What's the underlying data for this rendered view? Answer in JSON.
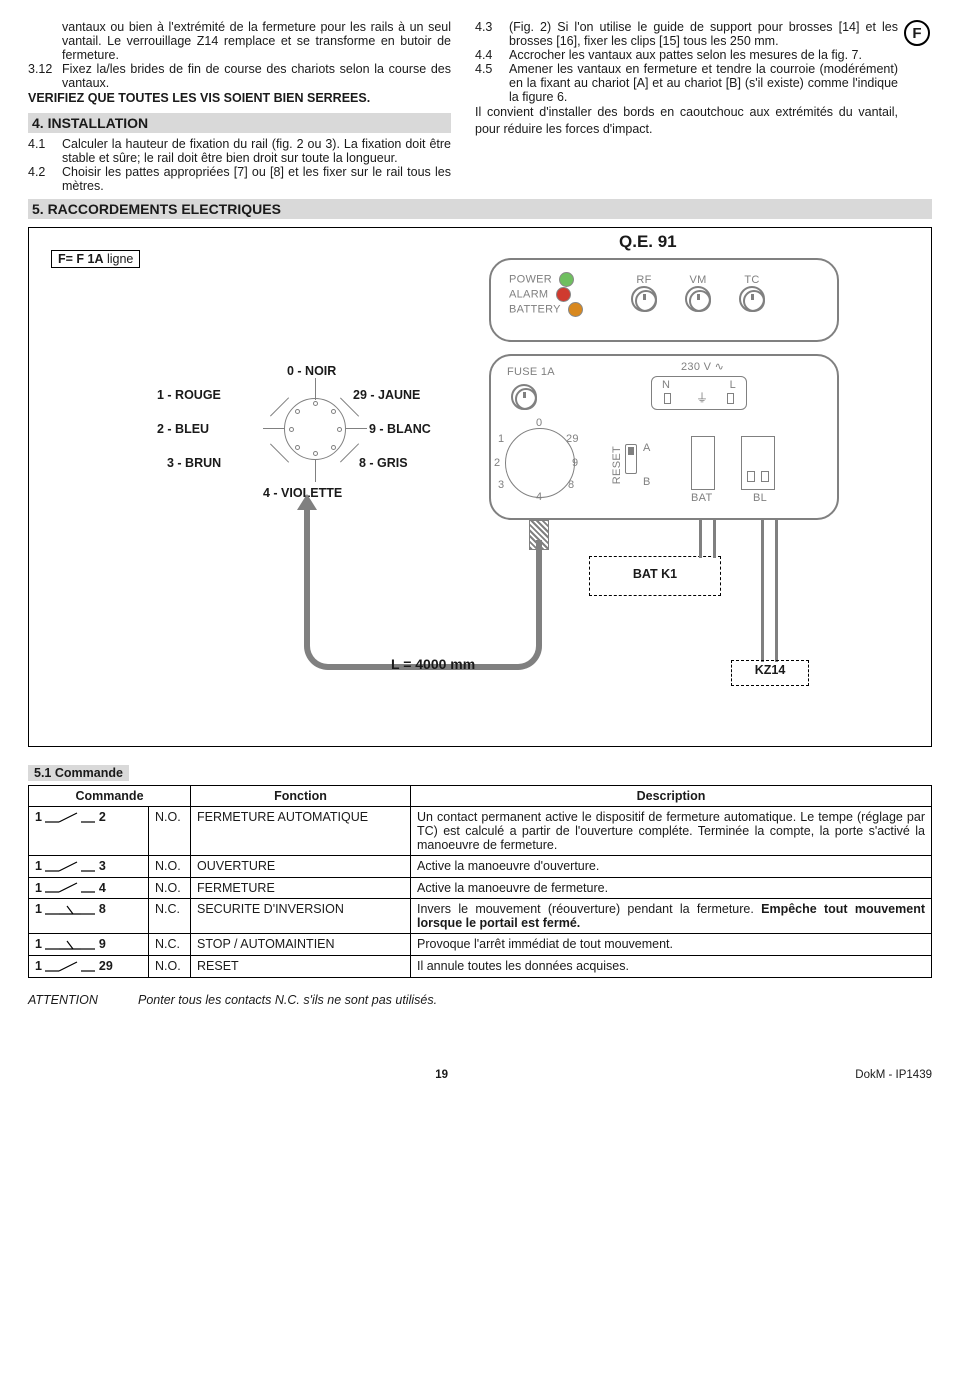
{
  "lang_badge": "F",
  "body": {
    "l1": "vantaux ou bien à l'extrémité de la fermeture pour les rails à un seul vantail.  Le verrouillage Z14 remplace et se transforme en butoir de fermeture.",
    "l2n": "3.12",
    "l2": "Fixez la/les brides de fin de course des chariots selon la course des vantaux.",
    "verify": "VERIFIEZ QUE TOUTES LES VIS SOIENT BIEN SERREES.",
    "s4": "4. INSTALLATION",
    "l3n": "4.1",
    "l3": "Calculer la hauteur de fixation du rail (fig. 2 ou 3). La fixation doit être stable et sûre; le rail doit être bien droit sur toute la longueur.",
    "l4n": "4.2",
    "l4": "Choisir les pattes appropriées [7] ou [8] et les fixer sur le rail tous les mètres.",
    "r1n": "4.3",
    "r1": "(Fig. 2) Si l'on utilise le guide de support pour brosses [14] et les brosses [16], fixer les clips [15] tous les 250 mm.",
    "r2n": "4.4",
    "r2": "Accrocher les vantaux aux pattes selon les mesures de la fig. 7.",
    "r3n": "4.5",
    "r3": "Amener les vantaux en fermeture et tendre la courroie (modérément) en la fixant au chariot [A] et au chariot [B] (s'il existe) comme l'indique la figure 6.",
    "r4": "Il convient d'installer des bords en caoutchouc aux extrémités du vantail, pour réduire les forces d'impact."
  },
  "s5": "5.  RACCORDEMENTS ELECTRIQUES",
  "diagram": {
    "fuse_label": "F= F 1A",
    "fuse_suffix": " ligne",
    "qe": "Q.E. 91",
    "top": {
      "power": "POWER",
      "alarm": "ALARM",
      "battery": "BATTERY",
      "rf": "RF",
      "vm": "VM",
      "tc": "TC",
      "led_green": "#6fbf5f",
      "led_red": "#cf3a2f",
      "led_orange": "#d8881f"
    },
    "bot": {
      "fuse": "FUSE 1A",
      "volt": "230 V ∿",
      "n": "N",
      "l": "L",
      "reset": "RESET",
      "bat": "BAT",
      "bl": "BL",
      "a": "A",
      "b": "B",
      "pins": [
        "0",
        "1",
        "2",
        "3",
        "4",
        "8",
        "9",
        "29"
      ]
    },
    "wires": {
      "r": "1 - ROUGE",
      "bl": "2 - BLEU",
      "br": "3 - BRUN",
      "n": "0 - NOIR",
      "j": "29 - JAUNE",
      "w": "9 - BLANC",
      "g": "8 - GRIS",
      "v": "4 - VIOLETTE"
    },
    "batk1": "BAT K1",
    "len": "L = 4000 mm",
    "kz": "KZ14"
  },
  "s51": "5.1  Commande",
  "table": {
    "headers": [
      "Commande",
      "Fonction",
      "Description"
    ],
    "rows": [
      {
        "a": "1",
        "b": "2",
        "t": "N.O.",
        "f": "FERMETURE AUTOMATIQUE",
        "d": "Un contact permanent active le dispositif de fermeture automatique. Le tempe (réglage par TC) est calculé a partir de l'ouverture compléte. Terminée la compte, la porte s'activé la manoeuvre de fermeture."
      },
      {
        "a": "1",
        "b": "3",
        "t": "N.O.",
        "f": "OUVERTURE",
        "d": "Active la manoeuvre d'ouverture."
      },
      {
        "a": "1",
        "b": "4",
        "t": "N.O.",
        "f": "FERMETURE",
        "d": "Active la manoeuvre de fermeture."
      },
      {
        "a": "1",
        "b": "8",
        "t": "N.C.",
        "f": "SECURITE D'INVERSION",
        "d": "Invers le mouvement  (réouverture) pendant la fermeture.  ",
        "db": "Empêche tout  mouvement lorsque le portail est fermé."
      },
      {
        "a": "1",
        "b": "9",
        "t": "N.C.",
        "f": "STOP / AUTOMAINTIEN",
        "d": "Provoque l'arrêt immédiat de tout  mouvement."
      },
      {
        "a": "1",
        "b": "29",
        "t": "N.O.",
        "f": "RESET",
        "d": "Il annule toutes les données acquises."
      }
    ]
  },
  "attention_l": "ATTENTION",
  "attention_r": "Ponter tous les contacts N.C. s'ils ne sont pas utilisés.",
  "footer": {
    "page": "19",
    "doc": "DokM  - IP1439"
  }
}
